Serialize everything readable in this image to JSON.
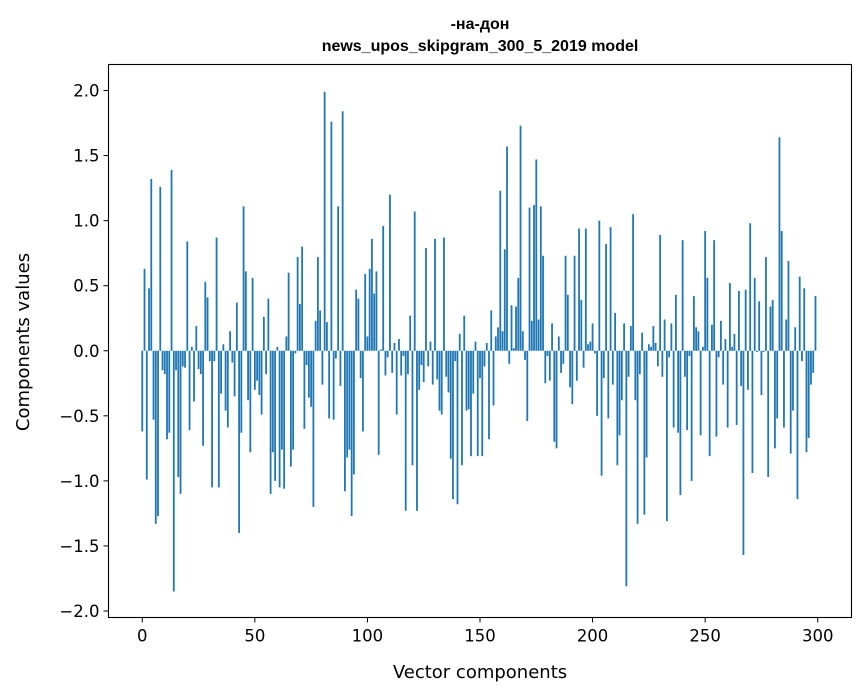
{
  "chart_data": {
    "type": "bar",
    "title_line1": "-на-дон",
    "title_line2": "news_upos_skipgram_300_5_2019 model",
    "xlabel": "Vector components",
    "ylabel": "Components values",
    "xlim": [
      -15,
      315
    ],
    "ylim": [
      -2.05,
      2.2
    ],
    "xticks": [
      0,
      50,
      100,
      150,
      200,
      250,
      300
    ],
    "xtick_labels": [
      "0",
      "50",
      "100",
      "150",
      "200",
      "250",
      "300"
    ],
    "yticks": [
      -2.0,
      -1.5,
      -1.0,
      -0.5,
      0.0,
      0.5,
      1.0,
      1.5,
      2.0
    ],
    "ytick_labels": [
      "−2.0",
      "−1.5",
      "−1.0",
      "−0.5",
      "0.0",
      "0.5",
      "1.0",
      "1.5",
      "2.0"
    ],
    "grid": false,
    "bar_color": "#1f77b4",
    "values": [
      -0.62,
      0.63,
      -0.99,
      0.48,
      1.32,
      -0.53,
      -1.33,
      -1.27,
      1.26,
      -0.15,
      -0.18,
      -0.68,
      -0.63,
      1.39,
      -1.85,
      -0.15,
      -0.97,
      -1.1,
      -0.12,
      -0.13,
      0.84,
      -0.61,
      0.03,
      -0.39,
      0.19,
      -0.14,
      -0.18,
      -0.73,
      0.53,
      0.41,
      -0.08,
      -1.05,
      -0.08,
      0.87,
      -1.05,
      -0.33,
      0.05,
      -0.46,
      -0.59,
      0.15,
      -0.09,
      -0.35,
      0.37,
      -1.4,
      -0.63,
      1.11,
      0.61,
      -0.38,
      -0.78,
      0.56,
      -0.3,
      -0.23,
      -0.34,
      -0.49,
      0.26,
      -0.18,
      0.4,
      -1.1,
      -0.78,
      -1.0,
      0.03,
      -1.05,
      -0.76,
      -1.06,
      0.11,
      0.6,
      -0.89,
      -0.76,
      -0.02,
      0.72,
      0.36,
      0.8,
      -0.6,
      -0.11,
      -0.36,
      -0.43,
      -1.2,
      0.23,
      0.72,
      0.31,
      -0.26,
      1.99,
      0.22,
      -0.52,
      1.76,
      -0.53,
      -0.06,
      1.11,
      -0.27,
      1.84,
      -1.08,
      -0.82,
      -0.76,
      -1.27,
      -0.95,
      0.47,
      0.4,
      -0.21,
      -0.62,
      0.59,
      0.11,
      0.63,
      0.86,
      0.44,
      0.61,
      -0.8,
      0.01,
      0.96,
      -0.19,
      -0.05,
      1.2,
      -0.17,
      0.06,
      -0.49,
      0.09,
      -0.19,
      -0.04,
      -1.23,
      -0.18,
      0.27,
      -0.88,
      1.07,
      -1.23,
      -0.3,
      -0.11,
      -0.24,
      0.79,
      -0.12,
      0.07,
      -0.26,
      0.86,
      -0.22,
      -0.46,
      -0.49,
      0.87,
      -0.2,
      -0.32,
      -0.83,
      -1.14,
      -0.08,
      -1.18,
      0.13,
      -0.88,
      0.27,
      -0.46,
      -0.45,
      -0.81,
      -0.33,
      0.07,
      -0.81,
      -0.21,
      -0.81,
      -0.12,
      0.06,
      -0.68,
      0.31,
      -0.42,
      0.11,
      0.18,
      1.23,
      0.15,
      0.78,
      1.57,
      -0.1,
      0.35,
      0.02,
      0.34,
      0.56,
      1.73,
      0.15,
      -0.07,
      -0.54,
      1.1,
      0.23,
      1.12,
      1.47,
      0.24,
      1.11,
      0.73,
      -0.25,
      -0.04,
      -0.23,
      0.21,
      -0.7,
      -0.75,
      0.11,
      -0.17,
      -0.1,
      0.73,
      0.43,
      -0.28,
      -0.41,
      0.73,
      -0.23,
      0.94,
      0.39,
      -0.13,
      0.94,
      0.05,
      0.07,
      0.21,
      -0.02,
      -0.5,
      1.0,
      -0.96,
      -0.21,
      0.82,
      -0.52,
      0.95,
      -0.26,
      0.29,
      -0.88,
      -0.65,
      -0.38,
      0.21,
      -1.81,
      -0.2,
      0.19,
      1.05,
      -0.38,
      -1.33,
      -0.18,
      0.14,
      -1.26,
      -0.82,
      0.05,
      0.03,
      0.19,
      0.06,
      -0.12,
      0.89,
      -0.2,
      0.24,
      -1.31,
      -0.05,
      0.21,
      -0.59,
      0.43,
      -0.63,
      -1.11,
      0.85,
      -0.2,
      -0.61,
      -0.04,
      -1.0,
      0.42,
      0.18,
      0.15,
      -0.65,
      0.03,
      0.92,
      0.56,
      -0.81,
      0.2,
      0.85,
      -0.66,
      -0.05,
      0.23,
      -0.26,
      0.09,
      -0.59,
      0.52,
      0.03,
      0.13,
      -0.57,
      0.46,
      -0.27,
      -1.57,
      0.47,
      -0.3,
      0.98,
      -0.94,
      0.56,
      -0.01,
      0.38,
      -0.34,
      -0.01,
      0.72,
      -0.97,
      0.34,
      0.39,
      -0.75,
      -0.52,
      1.64,
      0.92,
      -0.59,
      0.24,
      0.69,
      -0.79,
      -0.46,
      0.18,
      -1.14,
      0.57,
      -0.08,
      0.48,
      -0.78,
      -0.67,
      -0.26,
      -0.17,
      0.42
    ]
  }
}
